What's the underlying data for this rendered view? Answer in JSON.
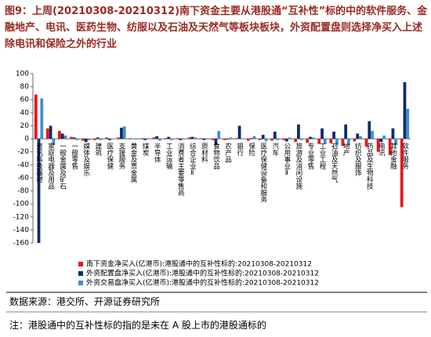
{
  "chart_data": {
    "type": "bar",
    "title": "图9：上周(20210308-20210312)南下资金主要从港股通“互补性”标的中的软件服务、金融地产、电讯、医药生物、纺服以及石油及天然气等板块板块，外资配置盘则选择净买入上述除电讯和保险之外的行业",
    "categories": [
      "资讯科技器材",
      "家庭电器及用品",
      "一般金属及矿石",
      "一般零售",
      "媒体及娱乐",
      "建筑",
      "医疗保健",
      "支援服务",
      "黄金及贵金属",
      "煤炭",
      "半导体",
      "工业运输",
      "消费者主要零售商",
      "综合企业Ⅱ",
      "原材料",
      "食物饮品",
      "农产品",
      "银行",
      "保险",
      "医疗保健设备和服务",
      "汽车",
      "公用事业Ⅱ",
      "旅游及消闲设施",
      "专业零售",
      "工业工程",
      "石油及天然气",
      "地产",
      "纺织及服饰",
      "药品及生物科技",
      "电讯",
      "其他金融",
      "软件服务"
    ],
    "series": [
      {
        "name": "南下资金净买入(亿港币):港股通中的互补性标的:20210308-20210312",
        "color": "#e8161b",
        "values": [
          68,
          16,
          12,
          3,
          -3,
          -2,
          2,
          2,
          1,
          1,
          2,
          1,
          1,
          2,
          1,
          -2,
          -2,
          1,
          -3,
          -2,
          -3,
          -2,
          -5,
          -6,
          -8,
          -7,
          -11,
          -4,
          -12,
          -20,
          -25,
          -105
        ]
      },
      {
        "name": "外资配置盘净买入(亿港币):港股通中的互补性标的:20210308-20210312",
        "color": "#0d2a6b",
        "values": [
          -160,
          20,
          8,
          2,
          -5,
          2,
          -2,
          17,
          0,
          -2,
          4,
          3,
          -2,
          3,
          -2,
          -10,
          -1,
          20,
          1,
          6,
          11,
          -4,
          22,
          3,
          16,
          11,
          22,
          8,
          27,
          -5,
          16,
          87
        ]
      },
      {
        "name": "外资交易盘净买入(亿港币):港股通中的互补性标的:20210308-20210312",
        "color": "#3e8fd6",
        "values": [
          62,
          -10,
          5,
          -2,
          -2,
          -2,
          0,
          19,
          -1,
          1,
          -3,
          -2,
          -1,
          2,
          -1,
          12,
          2,
          0,
          4,
          -4,
          -2,
          2,
          -2,
          2,
          -8,
          -10,
          -10,
          4,
          12,
          5,
          -10,
          46
        ]
      }
    ],
    "ylim": [
      -160,
      100
    ],
    "yticks": [
      -160,
      -140,
      -120,
      -100,
      -80,
      -60,
      -40,
      -20,
      0,
      20,
      40,
      60,
      80,
      100
    ],
    "source": "数据来源：港交所、开源证券研究所",
    "note": "注：港股通中的互补性标的指的是未在 A 股上市的港股通标的"
  }
}
